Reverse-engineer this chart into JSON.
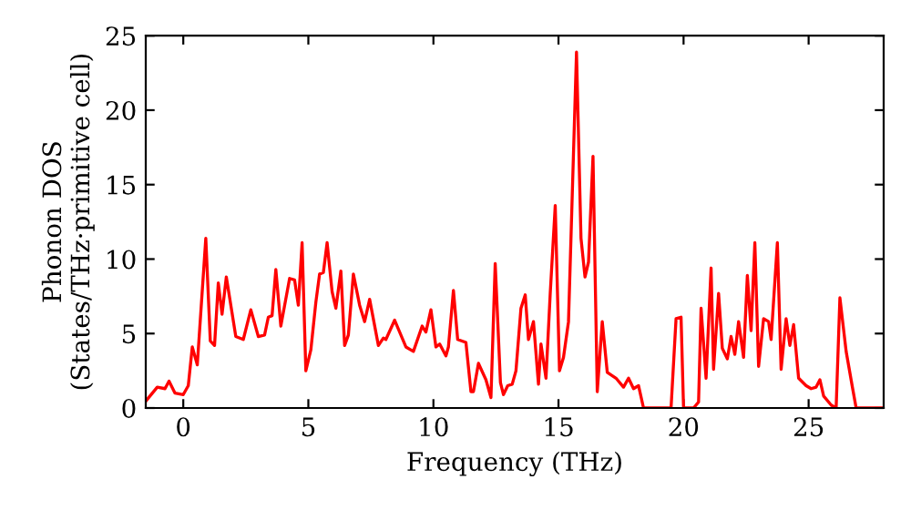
{
  "chart_data": {
    "type": "line",
    "xlabel": "Frequency (THz)",
    "ylabel": "Phonon DOS\n(States/THz·primitive cell)",
    "xlim": [
      -1.5,
      28
    ],
    "ylim": [
      0,
      25
    ],
    "xticks": [
      0,
      5,
      10,
      15,
      20,
      25
    ],
    "yticks": [
      0,
      5,
      10,
      15,
      20,
      25
    ],
    "grid": false,
    "marker": "none",
    "line_style": "solid",
    "series": [
      {
        "color": "#ff0000",
        "x": [
          -1.48,
          -1.04,
          -0.73,
          -0.57,
          -0.33,
          0,
          0.2,
          0.36,
          0.56,
          0.9,
          1.08,
          1.25,
          1.4,
          1.55,
          1.72,
          2.1,
          2.4,
          2.7,
          3.0,
          3.25,
          3.4,
          3.55,
          3.7,
          3.9,
          4.25,
          4.45,
          4.6,
          4.75,
          4.9,
          5.1,
          5.3,
          5.45,
          5.6,
          5.75,
          5.95,
          6.1,
          6.3,
          6.45,
          6.6,
          6.8,
          7.05,
          7.25,
          7.45,
          7.8,
          8.0,
          8.1,
          8.45,
          8.9,
          9.2,
          9.55,
          9.7,
          9.9,
          10.1,
          10.25,
          10.5,
          10.6,
          10.8,
          10.97,
          11.3,
          11.5,
          11.6,
          11.8,
          12.1,
          12.3,
          12.47,
          12.68,
          12.8,
          12.97,
          13.15,
          13.3,
          13.5,
          13.67,
          13.8,
          14.0,
          14.2,
          14.3,
          14.5,
          14.67,
          14.87,
          15.04,
          15.2,
          15.4,
          15.72,
          15.9,
          16.06,
          16.2,
          16.38,
          16.55,
          16.75,
          16.95,
          17.3,
          17.6,
          17.8,
          18.0,
          18.2,
          18.4,
          19.5,
          19.7,
          19.9,
          20.0,
          20.4,
          20.6,
          20.7,
          20.9,
          21.1,
          21.2,
          21.4,
          21.55,
          21.75,
          21.9,
          22.05,
          22.2,
          22.4,
          22.55,
          22.7,
          22.85,
          23.0,
          23.2,
          23.4,
          23.5,
          23.75,
          23.9,
          24.1,
          24.25,
          24.4,
          24.6,
          24.9,
          25.1,
          25.3,
          25.45,
          25.6,
          25.9,
          26.1,
          26.25,
          26.5,
          26.75,
          26.9,
          28.0
        ],
        "values": [
          0.5,
          1.4,
          1.3,
          1.8,
          1.0,
          0.9,
          1.5,
          4.1,
          2.9,
          11.4,
          4.5,
          4.2,
          8.4,
          6.3,
          8.8,
          4.8,
          4.6,
          6.6,
          4.8,
          4.9,
          6.1,
          6.2,
          9.3,
          5.5,
          8.7,
          8.6,
          6.9,
          11.1,
          2.5,
          3.9,
          7.1,
          9.0,
          9.1,
          11.1,
          7.8,
          6.7,
          9.2,
          4.2,
          4.9,
          9.0,
          6.9,
          5.8,
          7.3,
          4.2,
          4.7,
          4.6,
          5.9,
          4.1,
          3.8,
          5.5,
          5.1,
          6.6,
          4.1,
          4.3,
          3.5,
          4.1,
          7.9,
          4.6,
          4.4,
          1.1,
          1.1,
          3.0,
          1.9,
          0.7,
          9.7,
          1.7,
          0.9,
          1.5,
          1.6,
          2.5,
          6.7,
          7.6,
          4.6,
          5.8,
          1.6,
          4.3,
          2.0,
          7.7,
          13.6,
          2.5,
          3.4,
          5.8,
          23.9,
          11.4,
          8.8,
          9.8,
          16.9,
          1.1,
          5.8,
          2.4,
          2.0,
          1.4,
          2.0,
          1.3,
          1.5,
          0,
          0,
          6.0,
          6.1,
          0,
          0,
          0.4,
          6.7,
          2.0,
          9.4,
          2.6,
          7.7,
          4.0,
          3.3,
          4.8,
          3.6,
          5.8,
          3.4,
          8.9,
          5.2,
          11.1,
          2.8,
          6.0,
          5.8,
          4.6,
          11.1,
          2.6,
          6.0,
          4.2,
          5.6,
          2.0,
          1.5,
          1.3,
          1.4,
          1.9,
          0.8,
          0.2,
          0,
          7.4,
          3.8,
          1.4,
          0,
          0
        ]
      }
    ]
  }
}
